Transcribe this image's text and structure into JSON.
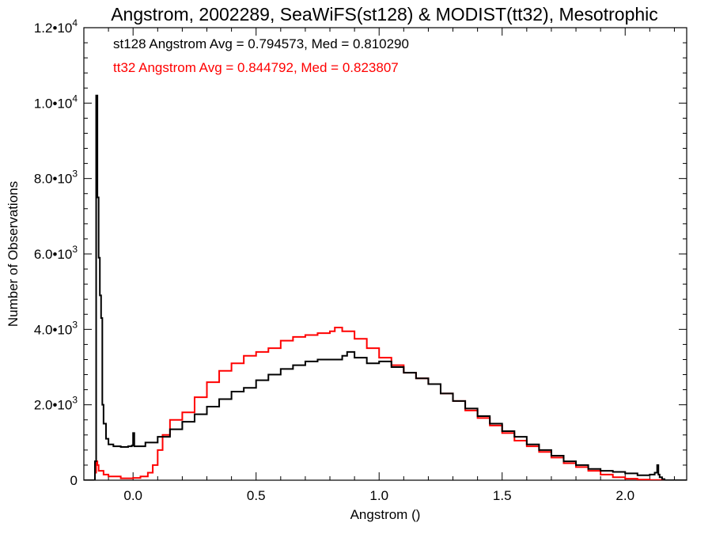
{
  "chart_data": {
    "type": "line",
    "title": "Angstrom, 2002289, SeaWiFS(st128) & MODIST(tt32), Mesotrophic",
    "xlabel": "Angstrom ()",
    "ylabel": "Number of Observations",
    "xlim": [
      -0.2,
      2.25
    ],
    "ylim": [
      0,
      12000
    ],
    "grid": false,
    "x_ticks": [
      0.0,
      0.5,
      1.0,
      1.5,
      2.0
    ],
    "x_tick_labels": [
      "0.0",
      "0.5",
      "1.0",
      "1.5",
      "2.0"
    ],
    "y_ticks": [
      0,
      2000,
      4000,
      6000,
      8000,
      10000,
      12000
    ],
    "y_tick_labels": [
      {
        "mantissa": "0",
        "exp": ""
      },
      {
        "mantissa": "2.0•10",
        "exp": "3"
      },
      {
        "mantissa": "4.0•10",
        "exp": "3"
      },
      {
        "mantissa": "6.0•10",
        "exp": "3"
      },
      {
        "mantissa": "8.0•10",
        "exp": "3"
      },
      {
        "mantissa": "1.0•10",
        "exp": "4"
      },
      {
        "mantissa": "1.2•10",
        "exp": "4"
      }
    ],
    "annotations": [
      {
        "text": "st128 Angstrom Avg = 0.794573, Med = 0.810290",
        "color": "#000000"
      },
      {
        "text": "tt32 Angstrom Avg = 0.844792, Med = 0.823807",
        "color": "#ff0000"
      }
    ],
    "series": [
      {
        "color": "#000000",
        "points": [
          [
            -0.25,
            0
          ],
          [
            -0.16,
            0
          ],
          [
            -0.155,
            500
          ],
          [
            -0.15,
            10200
          ],
          [
            -0.145,
            7500
          ],
          [
            -0.14,
            5900
          ],
          [
            -0.135,
            4900
          ],
          [
            -0.13,
            4300
          ],
          [
            -0.125,
            2000
          ],
          [
            -0.12,
            1500
          ],
          [
            -0.11,
            1100
          ],
          [
            -0.1,
            950
          ],
          [
            -0.08,
            900
          ],
          [
            -0.05,
            880
          ],
          [
            -0.02,
            900
          ],
          [
            -0.005,
            920
          ],
          [
            0.0,
            1250
          ],
          [
            0.005,
            900
          ],
          [
            0.05,
            1000
          ],
          [
            0.1,
            1150
          ],
          [
            0.15,
            1350
          ],
          [
            0.2,
            1550
          ],
          [
            0.25,
            1750
          ],
          [
            0.3,
            1950
          ],
          [
            0.35,
            2150
          ],
          [
            0.4,
            2350
          ],
          [
            0.45,
            2450
          ],
          [
            0.5,
            2650
          ],
          [
            0.55,
            2800
          ],
          [
            0.6,
            2950
          ],
          [
            0.65,
            3050
          ],
          [
            0.7,
            3150
          ],
          [
            0.75,
            3200
          ],
          [
            0.8,
            3200
          ],
          [
            0.85,
            3300
          ],
          [
            0.87,
            3400
          ],
          [
            0.9,
            3250
          ],
          [
            0.95,
            3100
          ],
          [
            1.0,
            3150
          ],
          [
            1.05,
            3000
          ],
          [
            1.1,
            2850
          ],
          [
            1.15,
            2700
          ],
          [
            1.2,
            2550
          ],
          [
            1.25,
            2300
          ],
          [
            1.3,
            2100
          ],
          [
            1.35,
            1900
          ],
          [
            1.4,
            1700
          ],
          [
            1.45,
            1500
          ],
          [
            1.5,
            1300
          ],
          [
            1.55,
            1150
          ],
          [
            1.6,
            950
          ],
          [
            1.65,
            800
          ],
          [
            1.7,
            650
          ],
          [
            1.75,
            500
          ],
          [
            1.8,
            400
          ],
          [
            1.85,
            300
          ],
          [
            1.9,
            250
          ],
          [
            1.95,
            220
          ],
          [
            2.0,
            180
          ],
          [
            2.05,
            130
          ],
          [
            2.1,
            150
          ],
          [
            2.12,
            200
          ],
          [
            2.13,
            400
          ],
          [
            2.135,
            150
          ],
          [
            2.14,
            80
          ],
          [
            2.15,
            30
          ],
          [
            2.16,
            0
          ],
          [
            2.25,
            0
          ]
        ]
      },
      {
        "color": "#ff0000",
        "points": [
          [
            -0.25,
            0
          ],
          [
            -0.16,
            0
          ],
          [
            -0.155,
            200
          ],
          [
            -0.15,
            500
          ],
          [
            -0.145,
            400
          ],
          [
            -0.14,
            250
          ],
          [
            -0.12,
            150
          ],
          [
            -0.1,
            100
          ],
          [
            -0.05,
            50
          ],
          [
            0.0,
            60
          ],
          [
            0.03,
            100
          ],
          [
            0.06,
            200
          ],
          [
            0.08,
            400
          ],
          [
            0.1,
            800
          ],
          [
            0.12,
            1200
          ],
          [
            0.15,
            1600
          ],
          [
            0.2,
            1800
          ],
          [
            0.25,
            2200
          ],
          [
            0.3,
            2600
          ],
          [
            0.35,
            2900
          ],
          [
            0.4,
            3100
          ],
          [
            0.45,
            3300
          ],
          [
            0.5,
            3400
          ],
          [
            0.55,
            3500
          ],
          [
            0.6,
            3700
          ],
          [
            0.65,
            3800
          ],
          [
            0.7,
            3850
          ],
          [
            0.75,
            3900
          ],
          [
            0.8,
            3950
          ],
          [
            0.82,
            4050
          ],
          [
            0.85,
            3950
          ],
          [
            0.9,
            3750
          ],
          [
            0.95,
            3500
          ],
          [
            1.0,
            3250
          ],
          [
            1.05,
            3050
          ],
          [
            1.1,
            2850
          ],
          [
            1.15,
            2700
          ],
          [
            1.2,
            2550
          ],
          [
            1.25,
            2300
          ],
          [
            1.3,
            2100
          ],
          [
            1.35,
            1850
          ],
          [
            1.4,
            1650
          ],
          [
            1.45,
            1450
          ],
          [
            1.5,
            1250
          ],
          [
            1.55,
            1050
          ],
          [
            1.6,
            900
          ],
          [
            1.65,
            750
          ],
          [
            1.7,
            600
          ],
          [
            1.75,
            450
          ],
          [
            1.8,
            350
          ],
          [
            1.85,
            250
          ],
          [
            1.9,
            150
          ],
          [
            1.95,
            80
          ],
          [
            2.0,
            40
          ],
          [
            2.05,
            15
          ],
          [
            2.1,
            5
          ],
          [
            2.15,
            0
          ],
          [
            2.25,
            0
          ]
        ]
      }
    ]
  }
}
